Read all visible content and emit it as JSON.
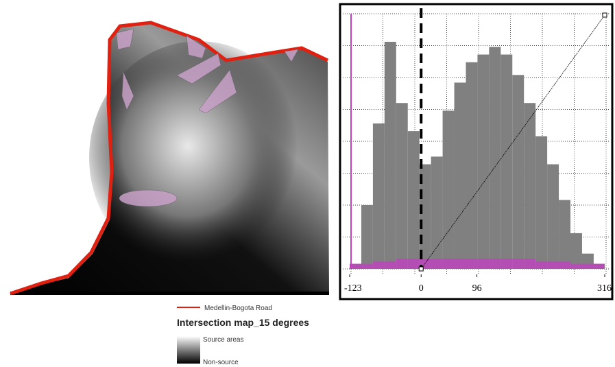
{
  "map": {
    "legend": {
      "road": "Medellin-Bogota Road",
      "title": "Intersection map_15 degrees",
      "high": "Source areas",
      "low": "Non-source"
    }
  },
  "histogram": {
    "xlim": [
      -123,
      316
    ],
    "ylim": [
      0,
      100
    ],
    "xticks": [
      -123,
      0,
      96,
      316
    ],
    "bins": [
      -123,
      -103,
      -83,
      -63,
      -43,
      -23,
      -3,
      17,
      37,
      57,
      77,
      97,
      117,
      137,
      157,
      177,
      197,
      217,
      237,
      257,
      277,
      297,
      316
    ],
    "values": [
      2,
      25,
      57,
      89,
      65,
      54,
      41,
      44,
      62,
      73,
      81,
      84,
      87,
      84,
      76,
      65,
      52,
      41,
      27,
      14,
      6,
      2
    ],
    "color": "#808080",
    "overlay": [
      2,
      2,
      3,
      3,
      4,
      4,
      4,
      4,
      4,
      4,
      4,
      4,
      4,
      4,
      4,
      4,
      3,
      3,
      3,
      2,
      2,
      2
    ],
    "overlay_color": "#c040c0"
  }
}
